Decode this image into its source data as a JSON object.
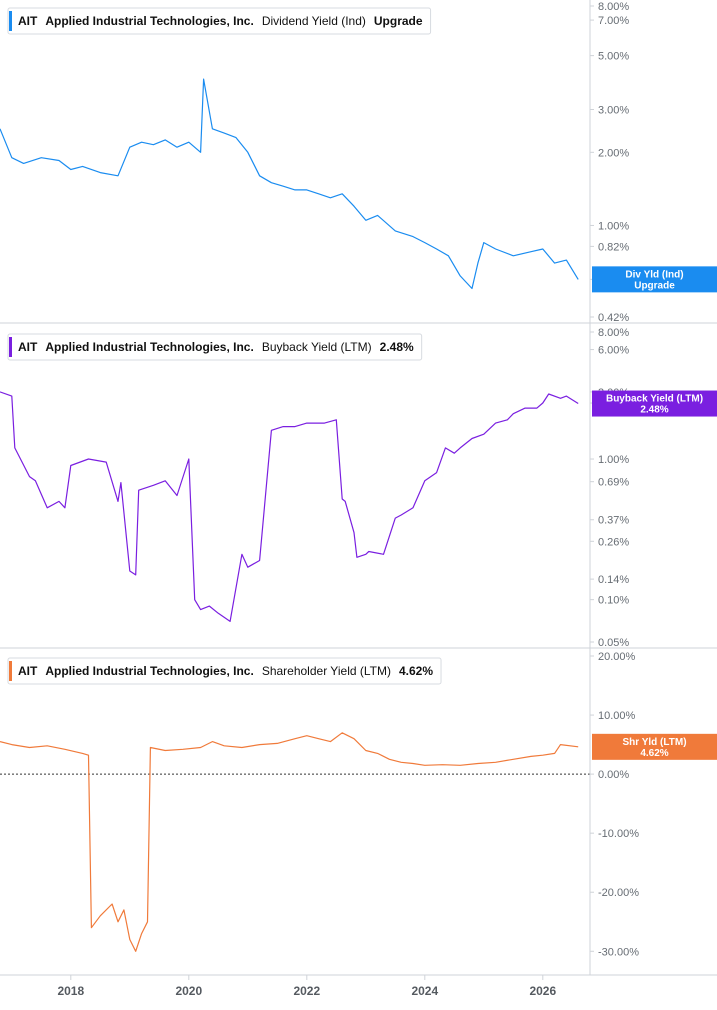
{
  "chart_data": [
    {
      "type": "line",
      "scale": "log",
      "legend": {
        "ticker": "AIT",
        "company": "Applied Industrial Technologies, Inc.",
        "metric": "Dividend Yield (Ind)",
        "value": "Upgrade"
      },
      "color": "#1a8cf0",
      "badge": {
        "line1": "Div Yld (Ind)",
        "line2": "Upgrade"
      },
      "ylim": [
        0.42,
        8.0
      ],
      "ticks": [
        {
          "v": 8.0,
          "label": "8.00%"
        },
        {
          "v": 7.0,
          "label": "7.00%"
        },
        {
          "v": 5.0,
          "label": "5.00%"
        },
        {
          "v": 3.0,
          "label": "3.00%"
        },
        {
          "v": 2.0,
          "label": "2.00%"
        },
        {
          "v": 1.0,
          "label": "1.00%"
        },
        {
          "v": 0.82,
          "label": "0.82%"
        },
        {
          "v": 0.6,
          "label": "0.6"
        },
        {
          "v": 0.42,
          "label": "0.42%"
        }
      ],
      "series": [
        {
          "x": [
            2016.8,
            2017.0,
            2017.2,
            2017.5,
            2017.8,
            2018.0,
            2018.2,
            2018.5,
            2018.8,
            2019.0,
            2019.2,
            2019.4,
            2019.6,
            2019.8,
            2020.0,
            2020.2,
            2020.25,
            2020.4,
            2020.6,
            2020.8,
            2021.0,
            2021.2,
            2021.4,
            2021.6,
            2021.8,
            2022.0,
            2022.2,
            2022.4,
            2022.6,
            2022.8,
            2023.0,
            2023.2,
            2023.5,
            2023.8,
            2024.0,
            2024.2,
            2024.4,
            2024.6,
            2024.8,
            2024.9,
            2025.0,
            2025.2,
            2025.5,
            2025.8,
            2026.0,
            2026.2,
            2026.4,
            2026.6
          ],
          "y": [
            2.5,
            1.9,
            1.8,
            1.9,
            1.85,
            1.7,
            1.75,
            1.65,
            1.6,
            2.1,
            2.2,
            2.15,
            2.25,
            2.1,
            2.2,
            2.0,
            4.0,
            2.5,
            2.4,
            2.3,
            2.0,
            1.6,
            1.5,
            1.45,
            1.4,
            1.4,
            1.35,
            1.3,
            1.35,
            1.2,
            1.05,
            1.1,
            0.95,
            0.9,
            0.85,
            0.8,
            0.75,
            0.62,
            0.55,
            0.7,
            0.85,
            0.8,
            0.75,
            0.78,
            0.8,
            0.7,
            0.72,
            0.6
          ]
        }
      ]
    },
    {
      "type": "line",
      "scale": "log",
      "legend": {
        "ticker": "AIT",
        "company": "Applied Industrial Technologies, Inc.",
        "metric": "Buyback Yield (LTM)",
        "value": "2.48%"
      },
      "color": "#7a1fe0",
      "badge": {
        "line1": "Buyback Yield (LTM)",
        "line2": "2.48%"
      },
      "ylim": [
        0.05,
        8.0
      ],
      "ticks": [
        {
          "v": 8.0,
          "label": "8.00%"
        },
        {
          "v": 6.0,
          "label": "6.00%"
        },
        {
          "v": 3.0,
          "label": "3.00%"
        },
        {
          "v": 2.5,
          "label": "2.50%"
        },
        {
          "v": 1.0,
          "label": "1.00%"
        },
        {
          "v": 0.69,
          "label": "0.69%"
        },
        {
          "v": 0.37,
          "label": "0.37%"
        },
        {
          "v": 0.26,
          "label": "0.26%"
        },
        {
          "v": 0.14,
          "label": "0.14%"
        },
        {
          "v": 0.1,
          "label": "0.10%"
        },
        {
          "v": 0.05,
          "label": "0.05%"
        }
      ],
      "series": [
        {
          "x": [
            2016.8,
            2017.0,
            2017.05,
            2017.3,
            2017.4,
            2017.6,
            2017.8,
            2017.9,
            2018.0,
            2018.3,
            2018.6,
            2018.8,
            2018.85,
            2019.0,
            2019.1,
            2019.15,
            2019.4,
            2019.6,
            2019.8,
            2020.0,
            2020.1,
            2020.2,
            2020.35,
            2020.5,
            2020.7,
            2020.9,
            2021.0,
            2021.1,
            2021.2,
            2021.4,
            2021.5,
            2021.6,
            2021.8,
            2022.0,
            2022.3,
            2022.5,
            2022.6,
            2022.65,
            2022.8,
            2022.85,
            2023.0,
            2023.05,
            2023.3,
            2023.5,
            2023.6,
            2023.8,
            2024.0,
            2024.2,
            2024.35,
            2024.5,
            2024.6,
            2024.8,
            2025.0,
            2025.2,
            2025.4,
            2025.5,
            2025.7,
            2025.9,
            2026.0,
            2026.1,
            2026.3,
            2026.4,
            2026.6
          ],
          "y": [
            3.0,
            2.8,
            1.2,
            0.75,
            0.7,
            0.45,
            0.5,
            0.45,
            0.9,
            1.0,
            0.95,
            0.5,
            0.68,
            0.16,
            0.15,
            0.6,
            0.65,
            0.7,
            0.55,
            1.0,
            0.1,
            0.085,
            0.09,
            0.08,
            0.07,
            0.21,
            0.17,
            0.18,
            0.19,
            1.6,
            1.65,
            1.7,
            1.7,
            1.8,
            1.8,
            1.9,
            0.52,
            0.5,
            0.3,
            0.2,
            0.21,
            0.22,
            0.21,
            0.38,
            0.4,
            0.45,
            0.7,
            0.8,
            1.2,
            1.1,
            1.2,
            1.4,
            1.5,
            1.8,
            1.9,
            2.1,
            2.3,
            2.3,
            2.5,
            2.9,
            2.7,
            2.8,
            2.48
          ]
        }
      ]
    },
    {
      "type": "line",
      "scale": "linear",
      "legend": {
        "ticker": "AIT",
        "company": "Applied Industrial Technologies, Inc.",
        "metric": "Shareholder Yield (LTM)",
        "value": "4.62%"
      },
      "color": "#f07a3a",
      "badge": {
        "line1": "Shr Yld (LTM)",
        "line2": "4.62%"
      },
      "ylim": [
        -33,
        20
      ],
      "zero_line": true,
      "ticks": [
        {
          "v": 20,
          "label": "20.00%"
        },
        {
          "v": 10,
          "label": "10.00%"
        },
        {
          "v": 0,
          "label": "0.00%"
        },
        {
          "v": -10,
          "label": "-10.00%"
        },
        {
          "v": -20,
          "label": "-20.00%"
        },
        {
          "v": -30,
          "label": "-30.00%"
        }
      ],
      "series": [
        {
          "x": [
            2016.8,
            2017.0,
            2017.3,
            2017.6,
            2017.9,
            2018.2,
            2018.3,
            2018.35,
            2018.5,
            2018.7,
            2018.8,
            2018.9,
            2019.0,
            2019.1,
            2019.2,
            2019.3,
            2019.35,
            2019.6,
            2019.9,
            2020.2,
            2020.4,
            2020.6,
            2020.9,
            2021.2,
            2021.5,
            2021.8,
            2022.0,
            2022.2,
            2022.4,
            2022.6,
            2022.8,
            2023.0,
            2023.2,
            2023.4,
            2023.6,
            2023.8,
            2024.0,
            2024.3,
            2024.6,
            2024.9,
            2025.2,
            2025.5,
            2025.8,
            2026.0,
            2026.2,
            2026.3,
            2026.6
          ],
          "y": [
            5.5,
            5.0,
            4.5,
            4.8,
            4.2,
            3.5,
            3.2,
            -26,
            -24,
            -22,
            -25,
            -23,
            -28,
            -30,
            -27,
            -25,
            4.5,
            4.0,
            4.2,
            4.5,
            5.5,
            4.8,
            4.5,
            5.0,
            5.2,
            6.0,
            6.5,
            6.0,
            5.5,
            7.0,
            6.0,
            4.0,
            3.5,
            2.5,
            2.0,
            1.8,
            1.5,
            1.6,
            1.5,
            1.8,
            2.0,
            2.5,
            3.0,
            3.2,
            3.5,
            5.0,
            4.62
          ]
        }
      ]
    }
  ],
  "x_axis": {
    "range": [
      2016.8,
      2026.8
    ],
    "ticks": [
      {
        "v": 2018,
        "label": "2018"
      },
      {
        "v": 2020,
        "label": "2020"
      },
      {
        "v": 2022,
        "label": "2022"
      },
      {
        "v": 2024,
        "label": "2024"
      },
      {
        "v": 2026,
        "label": "2026"
      }
    ]
  }
}
